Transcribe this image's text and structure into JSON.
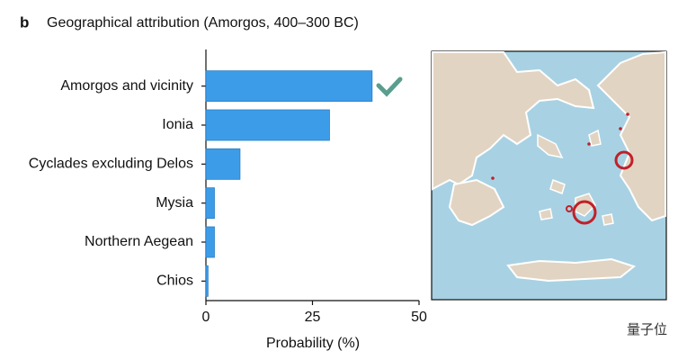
{
  "panel_label": "b",
  "chart_data": {
    "type": "bar",
    "orientation": "horizontal",
    "title": "Geographical attribution (Amorgos, 400–300 BC)",
    "categories": [
      "Amorgos and vicinity",
      "Ionia",
      "Cyclades excluding Delos",
      "Mysia",
      "Northern Aegean",
      "Chios"
    ],
    "values": [
      39,
      29,
      8,
      2,
      2,
      0.5
    ],
    "color": "#3d9ce8",
    "xlabel": "Probability (%)",
    "xlim": [
      0,
      50
    ],
    "xticks": [
      0,
      25,
      50
    ],
    "grid": false
  },
  "watermark": "量子位"
}
